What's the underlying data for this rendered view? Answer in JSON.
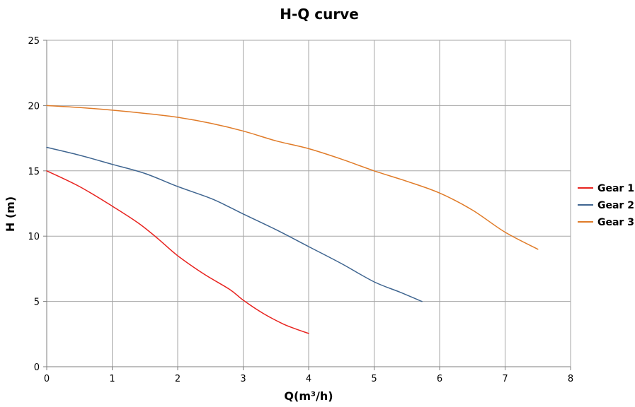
{
  "chart_data": {
    "type": "line",
    "title": "H-Q  curve",
    "xlabel": "Q(m³/h)",
    "ylabel": "H  (m)",
    "xlim": [
      0,
      8
    ],
    "ylim": [
      0,
      25
    ],
    "x_ticks": [
      0,
      1,
      2,
      3,
      4,
      5,
      6,
      7,
      8
    ],
    "y_ticks": [
      0,
      5,
      10,
      15,
      20,
      25
    ],
    "grid": true,
    "legend_position": "right",
    "series": [
      {
        "name": "Gear 1",
        "color": "#e8231f",
        "points": [
          [
            0,
            15.0
          ],
          [
            0.5,
            13.8
          ],
          [
            1.0,
            12.3
          ],
          [
            1.4,
            11.0
          ],
          [
            1.7,
            9.8
          ],
          [
            2.0,
            8.5
          ],
          [
            2.4,
            7.1
          ],
          [
            2.8,
            5.9
          ],
          [
            3.0,
            5.1
          ],
          [
            3.3,
            4.1
          ],
          [
            3.6,
            3.3
          ],
          [
            3.8,
            2.9
          ],
          [
            4.0,
            2.55
          ]
        ]
      },
      {
        "name": "Gear 2",
        "color": "#3f6590",
        "points": [
          [
            0,
            16.8
          ],
          [
            0.5,
            16.2
          ],
          [
            1.0,
            15.5
          ],
          [
            1.5,
            14.8
          ],
          [
            2.0,
            13.8
          ],
          [
            2.5,
            12.9
          ],
          [
            2.8,
            12.2
          ],
          [
            3.0,
            11.7
          ],
          [
            3.5,
            10.5
          ],
          [
            4.0,
            9.2
          ],
          [
            4.5,
            7.9
          ],
          [
            5.0,
            6.5
          ],
          [
            5.4,
            5.7
          ],
          [
            5.73,
            5.0
          ]
        ]
      },
      {
        "name": "Gear 3",
        "color": "#e07b28",
        "points": [
          [
            0,
            20.0
          ],
          [
            0.5,
            19.85
          ],
          [
            1.0,
            19.65
          ],
          [
            1.5,
            19.4
          ],
          [
            2.0,
            19.1
          ],
          [
            2.5,
            18.65
          ],
          [
            3.0,
            18.05
          ],
          [
            3.5,
            17.3
          ],
          [
            4.0,
            16.7
          ],
          [
            4.5,
            15.9
          ],
          [
            5.0,
            15.0
          ],
          [
            5.5,
            14.2
          ],
          [
            6.0,
            13.3
          ],
          [
            6.5,
            12.0
          ],
          [
            7.0,
            10.3
          ],
          [
            7.5,
            9.0
          ]
        ]
      }
    ]
  }
}
